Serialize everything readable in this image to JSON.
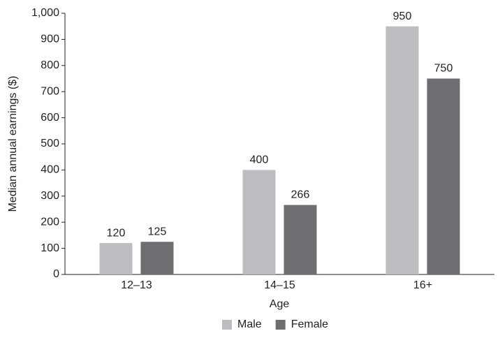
{
  "chart_data": {
    "type": "bar",
    "categories": [
      "12–13",
      "14–15",
      "16+"
    ],
    "series": [
      {
        "name": "Male",
        "color": "#bcbdc0",
        "values": [
          120,
          400,
          950
        ]
      },
      {
        "name": "Female",
        "color": "#6d6e71",
        "values": [
          125,
          266,
          750
        ]
      }
    ],
    "x_label": "Age",
    "y_label": "Median annual earnings ($)",
    "ylim": [
      0,
      1000
    ],
    "yticks": [
      0,
      100,
      200,
      300,
      400,
      500,
      600,
      700,
      800,
      900,
      {
        "value": 1000,
        "label": "1,000"
      }
    ],
    "grid": false,
    "legend": "bottom"
  }
}
